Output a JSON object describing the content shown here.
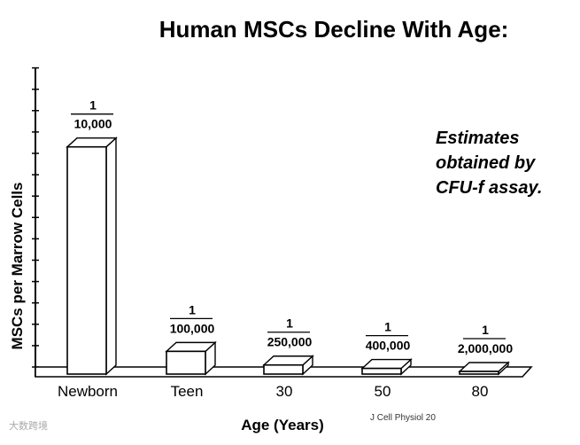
{
  "chart_data": {
    "type": "bar",
    "title": "Human MSCs Decline With Age:",
    "xlabel": "Age (Years)",
    "ylabel": "MSCs per Marrow Cells",
    "categories": [
      "Newborn",
      "Teen",
      "30",
      "50",
      "80"
    ],
    "values": [
      0.0001,
      1e-05,
      4e-06,
      2.5e-06,
      5e-07
    ],
    "bar_labels": [
      {
        "numerator": "1",
        "denominator": "10,000"
      },
      {
        "numerator": "1",
        "denominator": "100,000"
      },
      {
        "numerator": "1",
        "denominator": "250,000"
      },
      {
        "numerator": "1",
        "denominator": "400,000"
      },
      {
        "numerator": "1",
        "denominator": "2,000,000"
      }
    ],
    "ylim": [
      0,
      0.000135
    ],
    "grid": false,
    "annotation": [
      "Estimates",
      "obtained by",
      "CFU-f assay."
    ]
  },
  "citation": "J Cell Physiol 20",
  "watermark": "大数跨境"
}
